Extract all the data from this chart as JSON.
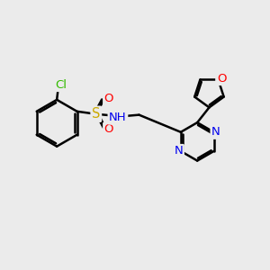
{
  "bg_color": "#ebebeb",
  "bond_color": "#000000",
  "bond_width": 1.8,
  "atom_colors": {
    "C": "#000000",
    "N": "#0000ee",
    "O": "#ff0000",
    "S": "#ccaa00",
    "Cl": "#33bb00",
    "H": "#444444"
  },
  "font_size": 9.5,
  "fig_width": 3.0,
  "fig_height": 3.0,
  "xlim": [
    0,
    10
  ],
  "ylim": [
    0,
    10
  ]
}
